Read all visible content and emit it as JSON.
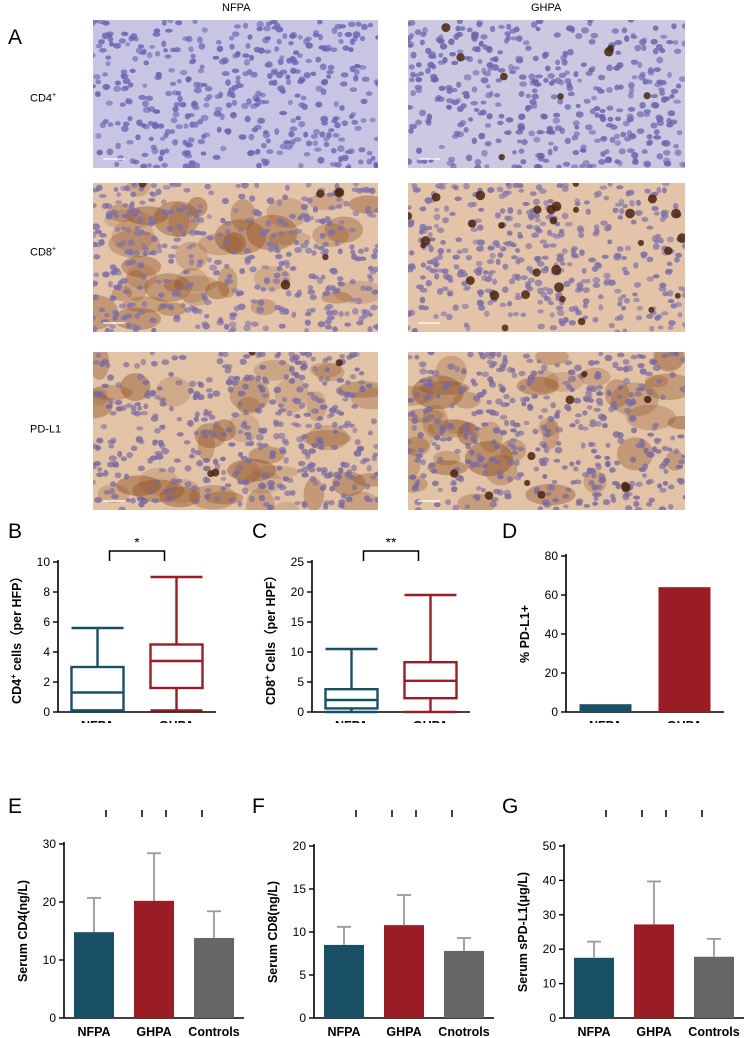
{
  "panel_a": {
    "letter": "A",
    "columns": [
      "NFPA",
      "GHPA"
    ],
    "rows": [
      {
        "label": "CD4",
        "sup": "+"
      },
      {
        "label": "CD8",
        "sup": "+"
      },
      {
        "label": "PD-L1",
        "sup": ""
      }
    ],
    "colors": {
      "nfpa_cd4_bg": "#c7c4e4",
      "nfpa_cd4_nuc": "#6a63b0",
      "ghpa_cd4_bg": "#cdc8e2",
      "ghpa_cd4_nuc": "#6a64ac",
      "cd8_bg": "#e3c4a8",
      "cd8_nuc": "#7d70a8",
      "pdl1_bg": "#e2c3a6",
      "pdl1_nuc": "#7a6aa0",
      "brown": "#8a4a1e",
      "dark_brown": "#4a2410"
    }
  },
  "colors": {
    "nfpa": "#1a5066",
    "ghpa": "#9a1c24",
    "controls": "#666666"
  },
  "chart_data": [
    {
      "panel": "B",
      "type": "box",
      "ylabel_pre": "CD4",
      "ylabel_sup": "+",
      "ylabel_post": " cells（per HFP）",
      "ylim": [
        0,
        10
      ],
      "yticks": [
        0,
        2,
        4,
        6,
        8,
        10
      ],
      "categories": [
        "NFPA",
        "GHPA"
      ],
      "boxes": [
        {
          "name": "NFPA",
          "min": 0.1,
          "q1": 0.1,
          "median": 1.3,
          "q3": 3.0,
          "max": 5.6
        },
        {
          "name": "GHPA",
          "min": 0.1,
          "q1": 1.6,
          "median": 3.4,
          "q3": 4.5,
          "max": 9.0
        }
      ],
      "sig": [
        {
          "from": 0,
          "to": 1,
          "label": "*"
        }
      ]
    },
    {
      "panel": "C",
      "type": "box",
      "ylabel_pre": "CD8",
      "ylabel_sup": "+",
      "ylabel_post": " Cells（per HPF）",
      "ylim": [
        0,
        25
      ],
      "yticks": [
        0,
        5,
        10,
        15,
        20,
        25
      ],
      "categories": [
        "NFPA",
        "GHPA"
      ],
      "boxes": [
        {
          "name": "NFPA",
          "min": 0,
          "q1": 0.6,
          "median": 2.0,
          "q3": 3.8,
          "max": 10.5
        },
        {
          "name": "GHPA",
          "min": 0,
          "q1": 2.3,
          "median": 5.2,
          "q3": 8.3,
          "max": 19.5
        }
      ],
      "sig": [
        {
          "from": 0,
          "to": 1,
          "label": "**"
        }
      ]
    },
    {
      "panel": "D",
      "type": "bar",
      "ylabel": "% PD-L1+",
      "ylim": [
        0,
        80
      ],
      "yticks": [
        0,
        20,
        40,
        60,
        80
      ],
      "categories": [
        "NFPA",
        "GHPA"
      ],
      "values": [
        4,
        64
      ],
      "errors": [
        0,
        0
      ],
      "sig": []
    },
    {
      "panel": "E",
      "type": "bar",
      "ylabel": "Serum CD4(ng/L)",
      "ylim": [
        0,
        30
      ],
      "yticks": [
        0,
        10,
        20,
        30
      ],
      "categories": [
        "NFPA",
        "GHPA",
        "Controls"
      ],
      "values": [
        14.8,
        20.2,
        13.8
      ],
      "errors": [
        5.9,
        8.2,
        4.6
      ],
      "sig": [
        {
          "from": 0,
          "to": 1,
          "label": "*"
        },
        {
          "from": 1,
          "to": 2,
          "label": "**"
        }
      ]
    },
    {
      "panel": "F",
      "type": "bar",
      "ylabel": "Serum CD8(ng/L)",
      "ylim": [
        0,
        20
      ],
      "yticks": [
        0,
        5,
        10,
        15,
        20
      ],
      "categories": [
        "NFPA",
        "GHPA",
        "Cnotrols"
      ],
      "values": [
        8.5,
        10.8,
        7.8
      ],
      "errors": [
        2.1,
        3.5,
        1.5
      ],
      "sig": [
        {
          "from": 0,
          "to": 1,
          "label": "**"
        },
        {
          "from": 1,
          "to": 2,
          "label": "***"
        }
      ]
    },
    {
      "panel": "G",
      "type": "bar",
      "ylabel": "Serum sPD-L1(μg/L)",
      "ylim": [
        0,
        50
      ],
      "yticks": [
        0,
        10,
        20,
        30,
        40,
        50
      ],
      "categories": [
        "NFPA",
        "GHPA",
        "Controls"
      ],
      "values": [
        17.5,
        27.2,
        17.8
      ],
      "errors": [
        4.7,
        12.5,
        5.2
      ],
      "sig": [
        {
          "from": 0,
          "to": 1,
          "label": "**"
        },
        {
          "from": 1,
          "to": 2,
          "label": "**"
        }
      ]
    }
  ]
}
